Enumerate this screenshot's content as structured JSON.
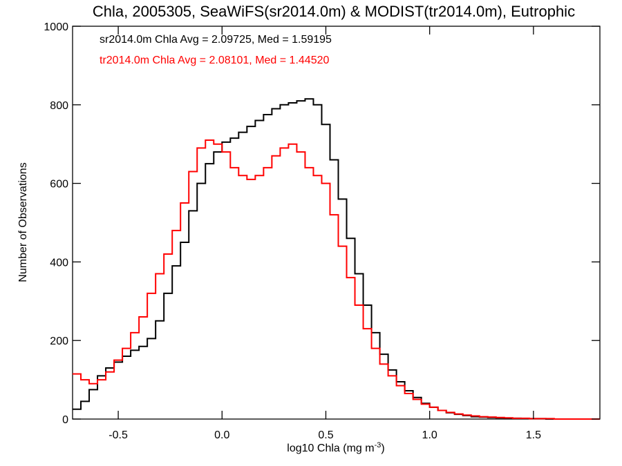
{
  "chart_data": {
    "type": "line",
    "title": "Chla, 2005305, SeaWiFS(sr2014.0m) & MODIST(tr2014.0m), Eutrophic",
    "xlabel": "log10 Chla (mg m",
    "xlabel_sup": "-3",
    "xlabel_end": ")",
    "ylabel": "Number of Observations",
    "xlim": [
      -0.72,
      1.82
    ],
    "ylim": [
      0,
      1000
    ],
    "xticks": [
      -0.5,
      0.0,
      0.5,
      1.0,
      1.5
    ],
    "xtick_labels": [
      "-0.5",
      "0.0",
      "0.5",
      "1.0",
      "1.5"
    ],
    "yticks": [
      0,
      200,
      400,
      600,
      800,
      1000
    ],
    "ytick_labels": [
      "0",
      "200",
      "400",
      "600",
      "800",
      "1000"
    ],
    "grid": false,
    "legend_position": "top-left",
    "series": [
      {
        "name": "sr2014.0m Chla Avg = 2.09725, Med = 1.59195",
        "color": "#000000",
        "x": [
          -0.72,
          -0.68,
          -0.64,
          -0.6,
          -0.56,
          -0.52,
          -0.48,
          -0.44,
          -0.4,
          -0.36,
          -0.32,
          -0.28,
          -0.24,
          -0.2,
          -0.16,
          -0.12,
          -0.08,
          -0.04,
          0.0,
          0.04,
          0.08,
          0.12,
          0.16,
          0.2,
          0.24,
          0.28,
          0.32,
          0.36,
          0.4,
          0.44,
          0.48,
          0.52,
          0.56,
          0.6,
          0.64,
          0.68,
          0.72,
          0.76,
          0.8,
          0.84,
          0.88,
          0.92,
          0.96,
          1.0,
          1.04,
          1.08,
          1.12,
          1.16,
          1.2,
          1.24,
          1.28,
          1.32,
          1.36,
          1.4,
          1.44,
          1.48,
          1.52,
          1.56,
          1.6,
          1.64,
          1.68,
          1.72,
          1.76,
          1.82
        ],
        "y": [
          25,
          45,
          75,
          110,
          130,
          145,
          160,
          175,
          185,
          205,
          250,
          320,
          390,
          450,
          530,
          600,
          650,
          680,
          705,
          715,
          730,
          745,
          760,
          775,
          790,
          800,
          805,
          810,
          815,
          800,
          750,
          660,
          560,
          460,
          370,
          290,
          220,
          165,
          125,
          95,
          72,
          55,
          40,
          30,
          22,
          16,
          12,
          9,
          6,
          5,
          4,
          3,
          2,
          2,
          1,
          1,
          1,
          0,
          0,
          0,
          0,
          0,
          0,
          0
        ]
      },
      {
        "name": "tr2014.0m Chla Avg = 2.08101, Med = 1.44520",
        "color": "#ff0000",
        "x": [
          -0.72,
          -0.68,
          -0.64,
          -0.6,
          -0.56,
          -0.52,
          -0.48,
          -0.44,
          -0.4,
          -0.36,
          -0.32,
          -0.28,
          -0.24,
          -0.2,
          -0.16,
          -0.12,
          -0.08,
          -0.04,
          0.0,
          0.04,
          0.08,
          0.12,
          0.16,
          0.2,
          0.24,
          0.28,
          0.32,
          0.36,
          0.4,
          0.44,
          0.48,
          0.52,
          0.56,
          0.6,
          0.64,
          0.68,
          0.72,
          0.76,
          0.8,
          0.84,
          0.88,
          0.92,
          0.96,
          1.0,
          1.04,
          1.08,
          1.12,
          1.16,
          1.2,
          1.24,
          1.28,
          1.32,
          1.36,
          1.4,
          1.44,
          1.48,
          1.52,
          1.56,
          1.6,
          1.64,
          1.68,
          1.72,
          1.76,
          1.82
        ],
        "y": [
          115,
          100,
          90,
          100,
          120,
          150,
          180,
          220,
          260,
          320,
          370,
          420,
          480,
          550,
          630,
          690,
          710,
          700,
          680,
          640,
          620,
          610,
          620,
          640,
          670,
          690,
          700,
          680,
          640,
          620,
          600,
          520,
          440,
          360,
          290,
          230,
          180,
          140,
          110,
          85,
          65,
          50,
          38,
          30,
          22,
          17,
          13,
          10,
          8,
          6,
          5,
          4,
          3,
          2,
          2,
          1,
          1,
          1,
          0,
          0,
          0,
          0,
          0,
          0
        ]
      }
    ]
  }
}
